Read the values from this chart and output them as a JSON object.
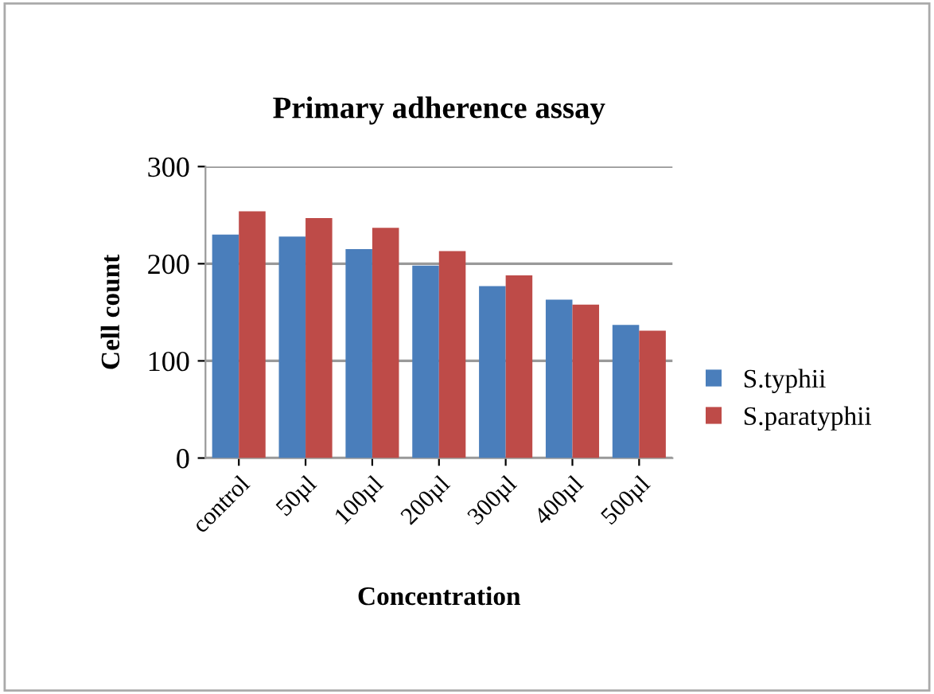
{
  "chart_data": {
    "type": "bar",
    "title": "Primary adherence assay",
    "xlabel": "Concentration",
    "ylabel": "Cell count",
    "categories": [
      "control",
      "50µl",
      "100µl",
      "200µl",
      "300µl",
      "400µl",
      "500µl"
    ],
    "series": [
      {
        "name": "S.typhii",
        "color": "#4a7ebb",
        "values": [
          230,
          228,
          215,
          198,
          177,
          163,
          137
        ]
      },
      {
        "name": "S.paratyphii",
        "color": "#be4b48",
        "values": [
          254,
          247,
          237,
          213,
          188,
          158,
          131
        ]
      }
    ],
    "ylim": [
      0,
      300
    ],
    "yticks": [
      0,
      100,
      200,
      300
    ],
    "grid": "y",
    "legend": "right"
  }
}
